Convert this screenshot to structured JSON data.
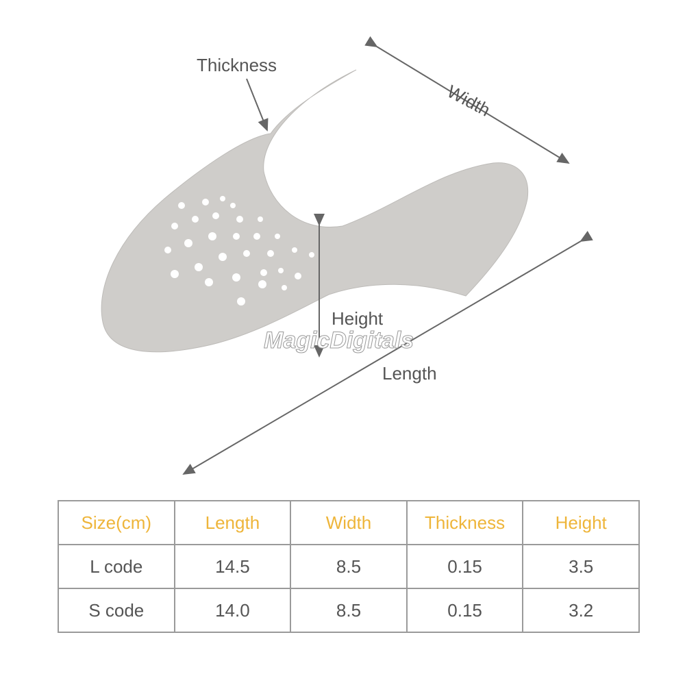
{
  "annotations": {
    "thickness": "Thickness",
    "width": "Width",
    "height": "Height",
    "length": "Length"
  },
  "watermark": "MagicDigitals",
  "table": {
    "headers": [
      "Size(cm)",
      "Length",
      "Width",
      "Thickness",
      "Height"
    ],
    "rows": [
      [
        "L code",
        "14.5",
        "8.5",
        "0.15",
        "3.5"
      ],
      [
        "S code",
        "14.0",
        "8.5",
        "0.15",
        "3.2"
      ]
    ]
  },
  "colors": {
    "header_text": "#eeb53a",
    "body_text": "#555555",
    "grid": "#9a9a9a",
    "product": "#cfcdca"
  }
}
